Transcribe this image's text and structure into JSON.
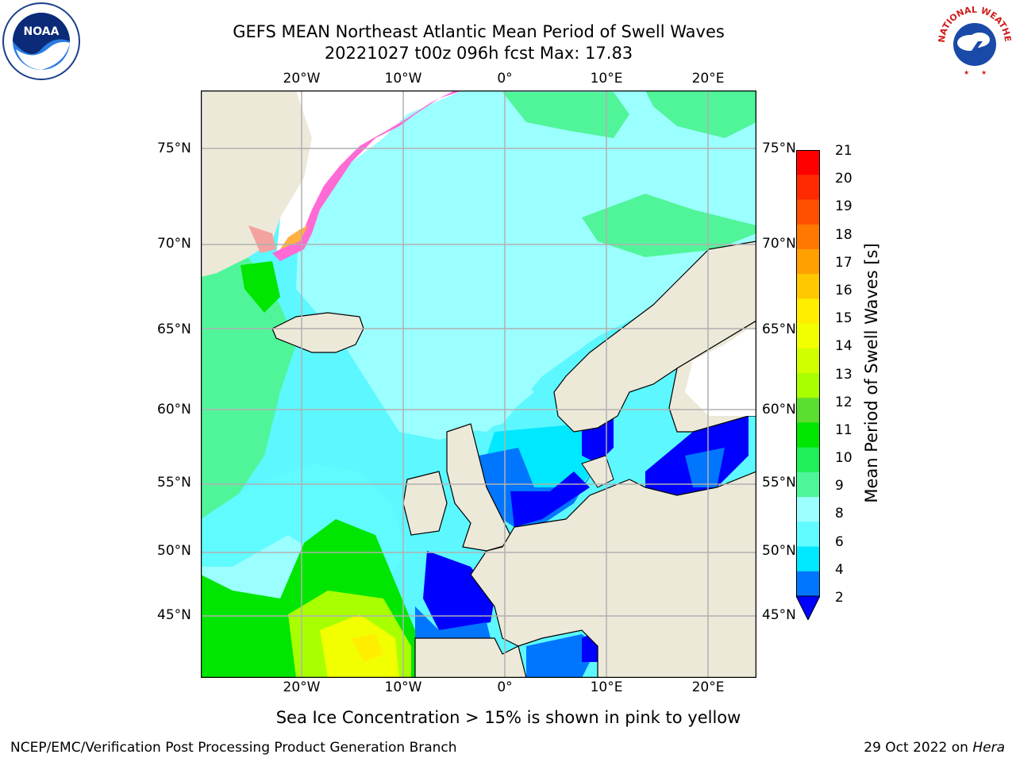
{
  "title": {
    "line1": "GEFS MEAN Northeast Atlantic Mean Period of Swell Waves",
    "line2": "20221027 t00z 096h fcst   Max: 17.83"
  },
  "logos": {
    "left": "NOAA",
    "right": "NATIONAL WEATHER SERVICE"
  },
  "map": {
    "lon_labels": [
      "20°W",
      "10°W",
      "0°",
      "10°E",
      "20°E"
    ],
    "lat_labels": [
      "75°N",
      "70°N",
      "65°N",
      "60°N",
      "55°N",
      "50°N",
      "45°N"
    ],
    "colors": {
      "land": "#ede9d9",
      "ice_white": "#ffffff",
      "grid": "#b0b0b0",
      "coast": "#000000"
    }
  },
  "colorbar": {
    "label": "Mean Period of Swell Waves [s]",
    "ticks": [
      "21",
      "20",
      "19",
      "18",
      "17",
      "16",
      "15",
      "14",
      "13",
      "12",
      "11",
      "10",
      "9",
      "8",
      "6",
      "4",
      "2"
    ],
    "colors_top_to_bottom": [
      "#ff0000",
      "#ff2a00",
      "#ff4f00",
      "#ff7800",
      "#ffa000",
      "#ffc800",
      "#ffee00",
      "#f2ff00",
      "#d0ff00",
      "#a8ff00",
      "#5ade30",
      "#00e600",
      "#20ef5a",
      "#50f59a",
      "#9cffff",
      "#60fbff",
      "#00e8ff",
      "#0076ff",
      "#0000ff"
    ]
  },
  "ice_note": "Sea Ice Concentration > 15% is shown in pink to yellow",
  "footer": {
    "left": "NCEP/EMC/Verification Post Processing Product Generation Branch",
    "date": "29 Oct 2022 on ",
    "host": "Hera"
  }
}
